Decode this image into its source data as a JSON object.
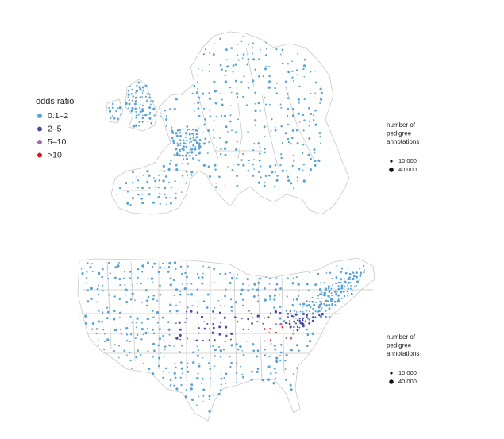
{
  "legend": {
    "title": "odds ratio",
    "items": [
      {
        "label": "0.1–2",
        "color": "#5ba3d2"
      },
      {
        "label": "2–5",
        "color": "#4a4c9c"
      },
      {
        "label": "5–10",
        "color": "#b262ab"
      },
      {
        "label": ">10",
        "color": "#d7191c"
      }
    ]
  },
  "maps": [
    {
      "size_legend": {
        "title": [
          "number of",
          "pedigree",
          "annotations"
        ],
        "items": [
          "10,000",
          "40,000"
        ]
      }
    },
    {
      "size_legend": {
        "title": [
          "number of",
          "pedigree",
          "annotations"
        ],
        "items": [
          "10,000",
          "40,000"
        ]
      }
    }
  ]
}
